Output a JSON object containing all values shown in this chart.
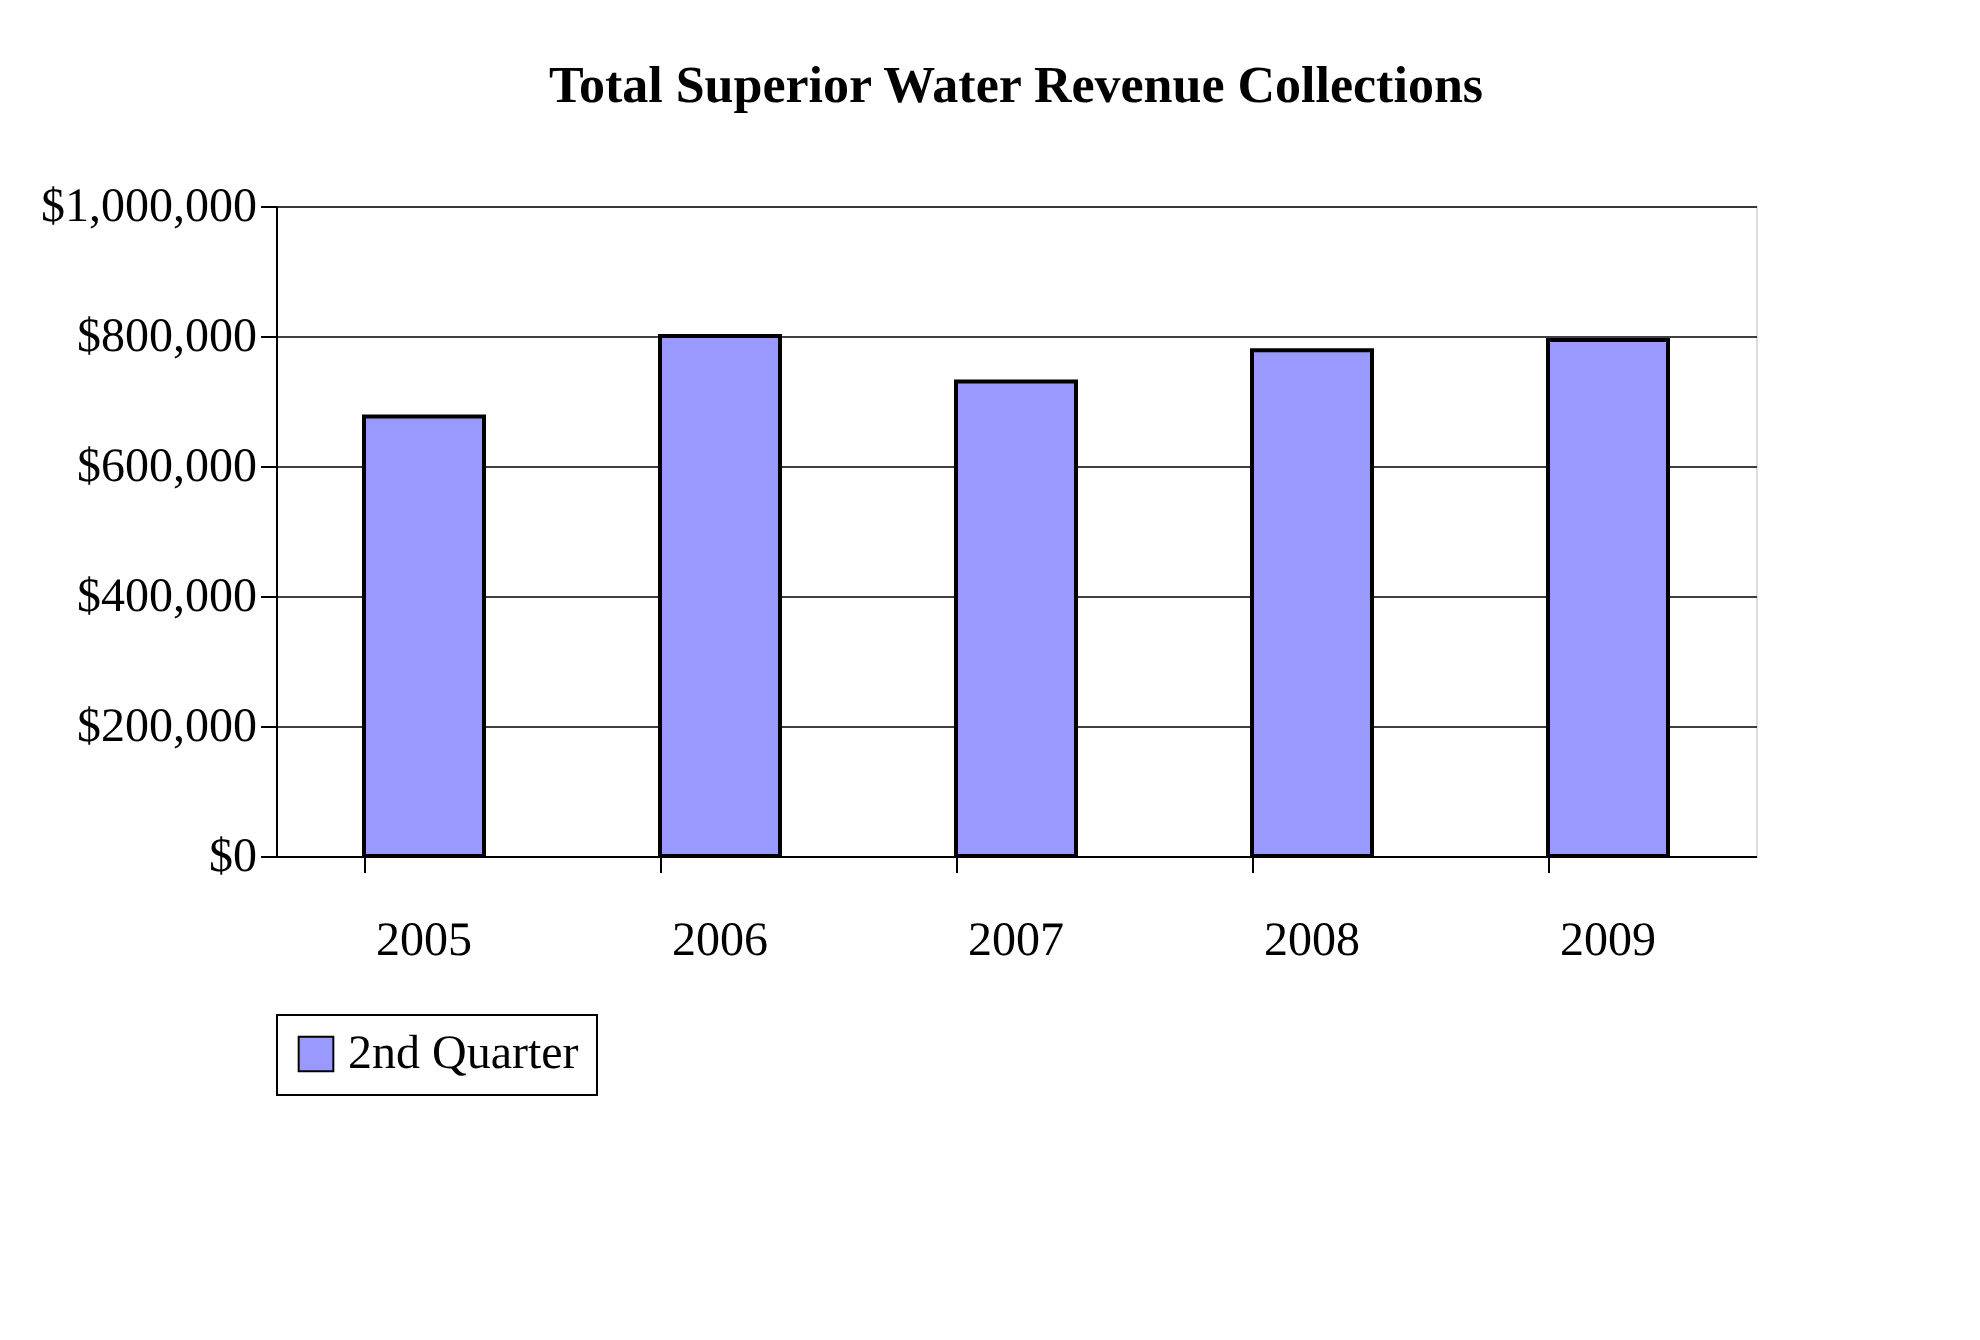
{
  "chart_data": {
    "type": "bar",
    "title": "Total Superior Water Revenue Collections",
    "categories": [
      "2005",
      "2006",
      "2007",
      "2008",
      "2009"
    ],
    "series": [
      {
        "name": "2nd Quarter",
        "color": "#9999ff",
        "values": [
          676000,
          800000,
          730000,
          778000,
          794000
        ]
      }
    ],
    "ylim": [
      0,
      1000000
    ],
    "yticks": [
      {
        "value": 0,
        "label": "$0"
      },
      {
        "value": 200000,
        "label": "$200,000"
      },
      {
        "value": 400000,
        "label": "$400,000"
      },
      {
        "value": 600000,
        "label": "$600,000"
      },
      {
        "value": 800000,
        "label": "$800,000"
      },
      {
        "value": 1000000,
        "label": "$1,000,000"
      }
    ],
    "grid": "y",
    "legend": "bottom"
  }
}
